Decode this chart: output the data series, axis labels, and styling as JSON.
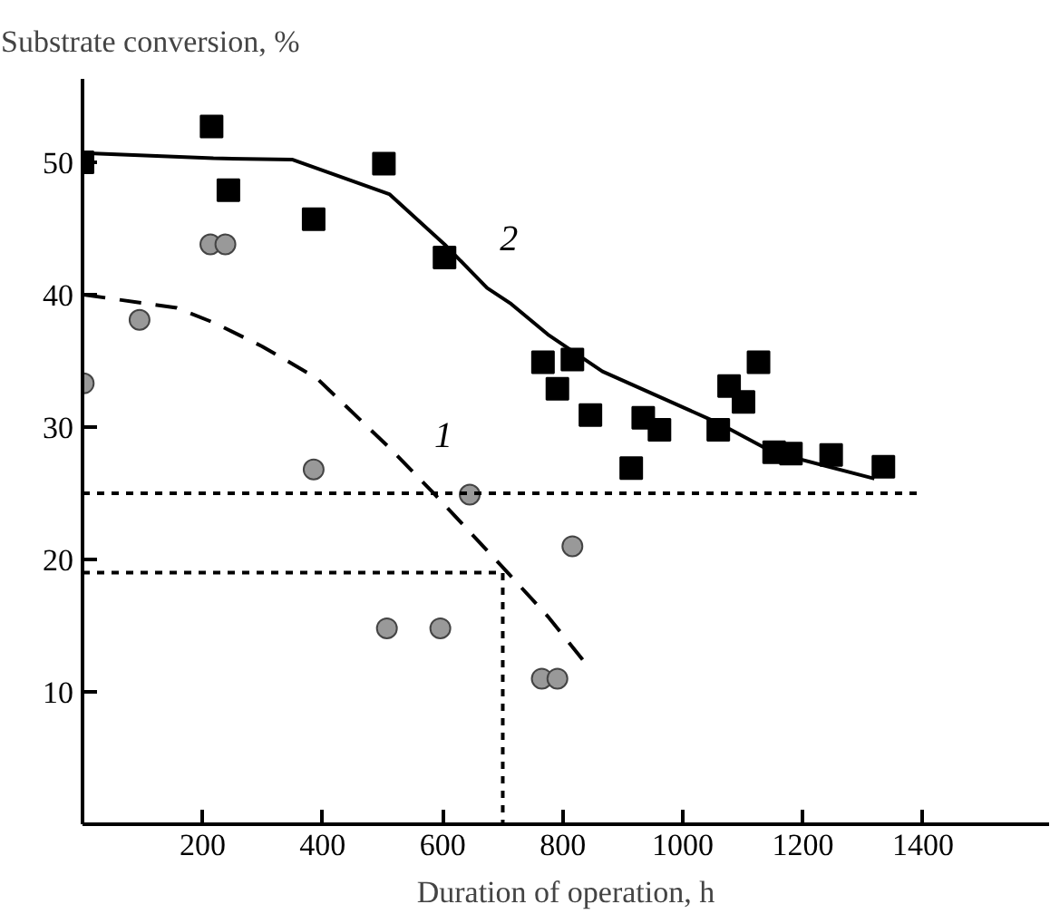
{
  "chart_data": {
    "type": "scatter",
    "xlabel": "Duration of operation, h",
    "ylabel": "Substrate conversion, %",
    "xlim": [
      0,
      1610
    ],
    "ylim": [
      0,
      56.3
    ],
    "xticks": [
      200,
      400,
      600,
      800,
      1000,
      1200,
      1400
    ],
    "yticks": [
      10,
      20,
      30,
      40,
      50
    ],
    "grid": false,
    "legend": false,
    "series": [
      {
        "marker": "square",
        "color": "#000000",
        "x": [
          0,
          215,
          243,
          385,
          502,
          603,
          767,
          791,
          816,
          846,
          914,
          934,
          961,
          1059,
          1077,
          1101,
          1126,
          1152,
          1180,
          1247,
          1334
        ],
        "values": [
          50,
          52.7,
          47.9,
          45.7,
          49.9,
          42.8,
          34.9,
          32.9,
          35.1,
          30.9,
          26.9,
          30.7,
          29.8,
          29.8,
          33.1,
          31.9,
          34.9,
          28.1,
          28.0,
          27.9,
          27.0
        ]
      },
      {
        "marker": "circle",
        "color": "#999999",
        "x": [
          2,
          95,
          213,
          238,
          385,
          507,
          596,
          645,
          765,
          791,
          816
        ],
        "values": [
          33.3,
          38.1,
          43.8,
          43.8,
          26.8,
          14.8,
          14.8,
          24.9,
          11.0,
          11.0,
          21.0
        ]
      },
      {
        "type": "line",
        "name": "2",
        "line_style": "solid",
        "color": "#000000",
        "x": [
          0,
          218,
          350,
          511,
          603,
          674,
          714,
          775,
          866,
          1059,
          1150,
          1319
        ],
        "values": [
          50.7,
          50.3,
          50.2,
          47.6,
          43.8,
          40.5,
          39.3,
          37.0,
          34.2,
          30.3,
          28.1,
          26.1
        ]
      },
      {
        "type": "line",
        "name": "1",
        "line_style": "dashed",
        "color": "#000000",
        "x": [
          2,
          157,
          218,
          299,
          390,
          512,
          583,
          694,
          775,
          839
        ],
        "values": [
          40.0,
          39.0,
          37.9,
          36.1,
          33.7,
          28.4,
          25.1,
          19.7,
          15.7,
          12.1
        ]
      },
      {
        "type": "line",
        "line_style": "dotted",
        "color": "#000000",
        "x": [
          0,
          1400
        ],
        "values": [
          25,
          25
        ]
      },
      {
        "type": "line",
        "line_style": "dotted",
        "color": "#000000",
        "x": [
          0,
          700,
          700
        ],
        "values": [
          19,
          19,
          0
        ]
      }
    ]
  }
}
